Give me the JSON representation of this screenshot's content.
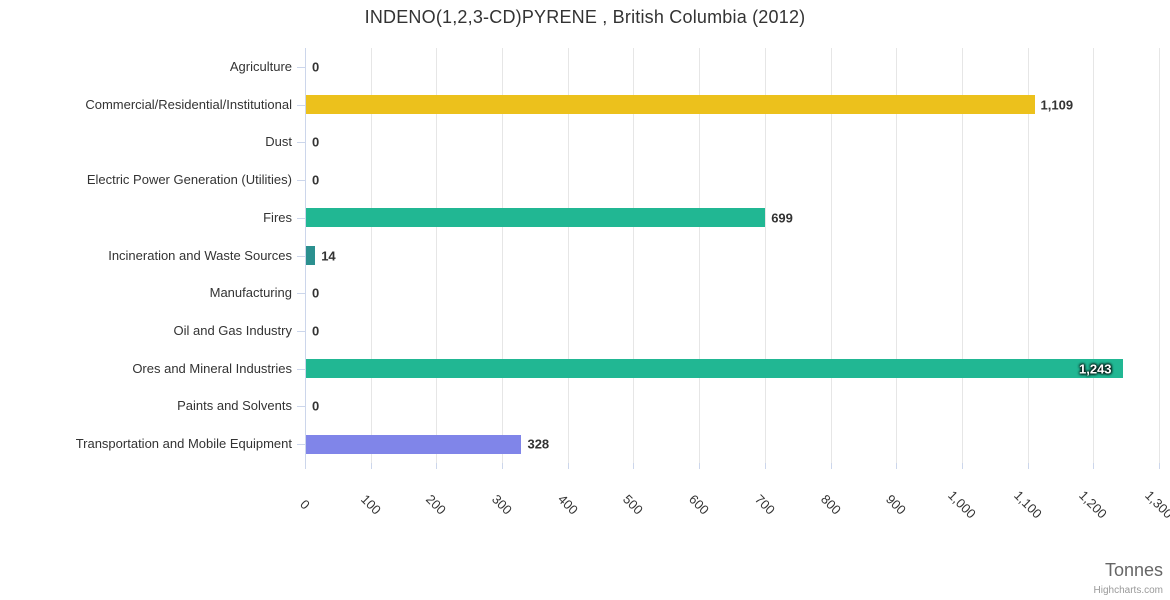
{
  "title": "INDENO(1,2,3-CD)PYRENE , British Columbia (2012)",
  "axis_title": "Tonnes",
  "credits": "Highcharts.com",
  "chart_data": {
    "type": "bar",
    "orientation": "horizontal",
    "title": "INDENO(1,2,3-CD)PYRENE , British Columbia (2012)",
    "xlabel": "Tonnes",
    "ylabel": "",
    "grid": true,
    "legend": false,
    "xlim": [
      0,
      1300
    ],
    "x_tick_values": [
      0,
      100,
      200,
      300,
      400,
      500,
      600,
      700,
      800,
      900,
      1000,
      1100,
      1200,
      1300
    ],
    "x_tick_labels": [
      "0",
      "100",
      "200",
      "300",
      "400",
      "500",
      "600",
      "700",
      "800",
      "900",
      "1,000",
      "1,100",
      "1,200",
      "1,300"
    ],
    "categories": [
      "Agriculture",
      "Commercial/Residential/Institutional",
      "Dust",
      "Electric Power Generation (Utilities)",
      "Fires",
      "Incineration and Waste Sources",
      "Manufacturing",
      "Oil and Gas Industry",
      "Ores and Mineral Industries",
      "Paints and Solvents",
      "Transportation and Mobile Equipment"
    ],
    "values": [
      0,
      1109,
      0,
      0,
      699,
      14,
      0,
      0,
      1243,
      0,
      328
    ],
    "value_labels": [
      "0",
      "1,109",
      "0",
      "0",
      "699",
      "14",
      "0",
      "0",
      "1,243",
      "0",
      "328"
    ],
    "bar_colors": [
      "#21b793",
      "#ecc11c",
      "#21b793",
      "#21b793",
      "#21b793",
      "#2b908f",
      "#21b793",
      "#21b793",
      "#21b793",
      "#21b793",
      "#8085e9"
    ],
    "label_inside": [
      false,
      false,
      false,
      false,
      false,
      false,
      false,
      false,
      true,
      false,
      false
    ],
    "colors": {
      "grid": "#e6e6e6",
      "axis_line": "#ccd6eb",
      "tick": "#ccd6eb",
      "category_label": "#333333",
      "value_label": "#333333",
      "inside_label": "#ffffff",
      "title": "#333333",
      "axis_title": "#666666",
      "credits": "#999999"
    }
  }
}
